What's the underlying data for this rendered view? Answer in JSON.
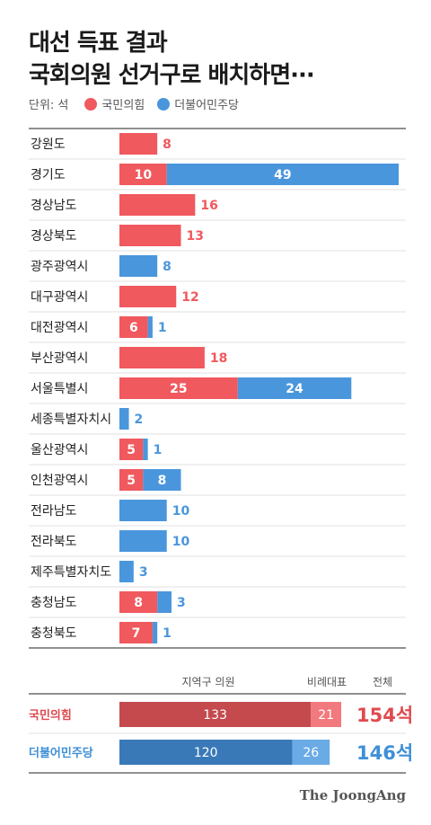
{
  "title": {
    "line1": "대선 득표 결과",
    "line2": "국회의원 선거구로 배치하면···"
  },
  "legend": {
    "unit": "단위: 석",
    "items": [
      {
        "name": "국민의힘",
        "color": "#f0595e"
      },
      {
        "name": "더불어민주당",
        "color": "#4a96dc"
      }
    ]
  },
  "chart_data": [
    {
      "type": "bar",
      "stacked": true,
      "orientation": "horizontal",
      "categories": [
        "강원도",
        "경기도",
        "경상남도",
        "경상북도",
        "광주광역시",
        "대구광역시",
        "대전광역시",
        "부산광역시",
        "서울특별시",
        "세종특별자치시",
        "울산광역시",
        "인천광역시",
        "전라남도",
        "전라북도",
        "제주특별자치도",
        "충청남도",
        "충청북도"
      ],
      "series": [
        {
          "name": "국민의힘",
          "color": "#f0595e",
          "values": [
            8,
            10,
            16,
            13,
            0,
            12,
            6,
            18,
            25,
            0,
            5,
            5,
            0,
            0,
            0,
            8,
            7
          ]
        },
        {
          "name": "더불어민주당",
          "color": "#4a96dc",
          "values": [
            0,
            49,
            0,
            0,
            8,
            0,
            1,
            0,
            24,
            2,
            1,
            8,
            10,
            10,
            3,
            3,
            1
          ]
        }
      ]
    },
    {
      "type": "bar",
      "stacked": true,
      "orientation": "horizontal",
      "column_headers": [
        "지역구 의원",
        "비례대표",
        "전체"
      ],
      "categories": [
        "국민의힘",
        "더불어민주당"
      ],
      "series": [
        {
          "name": "지역구 의원",
          "values": [
            133,
            120
          ],
          "colors": [
            "#c44a4e",
            "#3a79b8"
          ]
        },
        {
          "name": "비례대표",
          "values": [
            21,
            26
          ],
          "colors": [
            "#f27a7e",
            "#6aabe6"
          ]
        }
      ],
      "totals": [
        "154석",
        "146석"
      ],
      "label_colors": [
        "#e04a50",
        "#3f8fd6"
      ]
    }
  ],
  "brand": "The JoongAng"
}
